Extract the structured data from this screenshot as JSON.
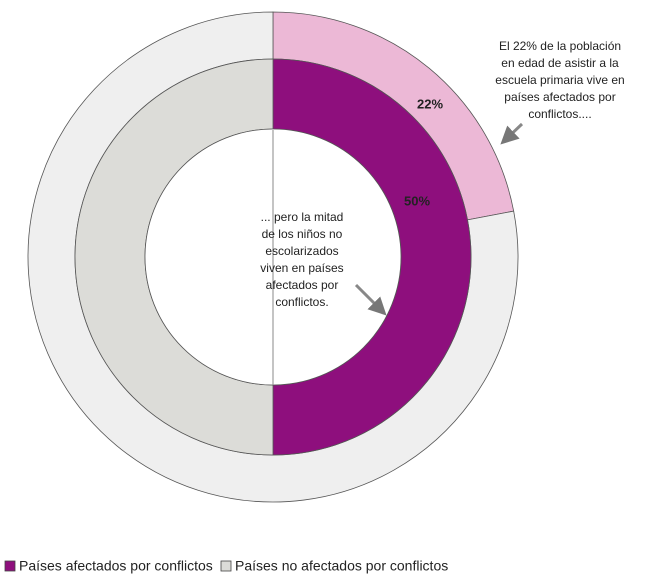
{
  "chart_data": {
    "type": "donut",
    "categories": [
      "Países afectados por conflictos",
      "Países no afectados por conflictos"
    ],
    "series": [
      {
        "values": [
          22,
          78
        ],
        "value_labels": [
          "22%",
          null
        ],
        "colors": [
          "#ecb8d6",
          "#efefef"
        ]
      },
      {
        "values": [
          50,
          50
        ],
        "value_labels": [
          "50%",
          null
        ],
        "colors": [
          "#8e0f7d",
          "#dcdcd8"
        ]
      }
    ],
    "annotations": [
      {
        "lines": [
          "El 22% de la población",
          "en edad de asistir a la",
          "escuela primaria vive en",
          "países afectados por",
          "conflictos...."
        ]
      },
      {
        "lines": [
          "... pero la mitad",
          "de los niños no",
          "escolarizados",
          "viven en países",
          "afectados por",
          "conflictos."
        ]
      }
    ]
  }
}
